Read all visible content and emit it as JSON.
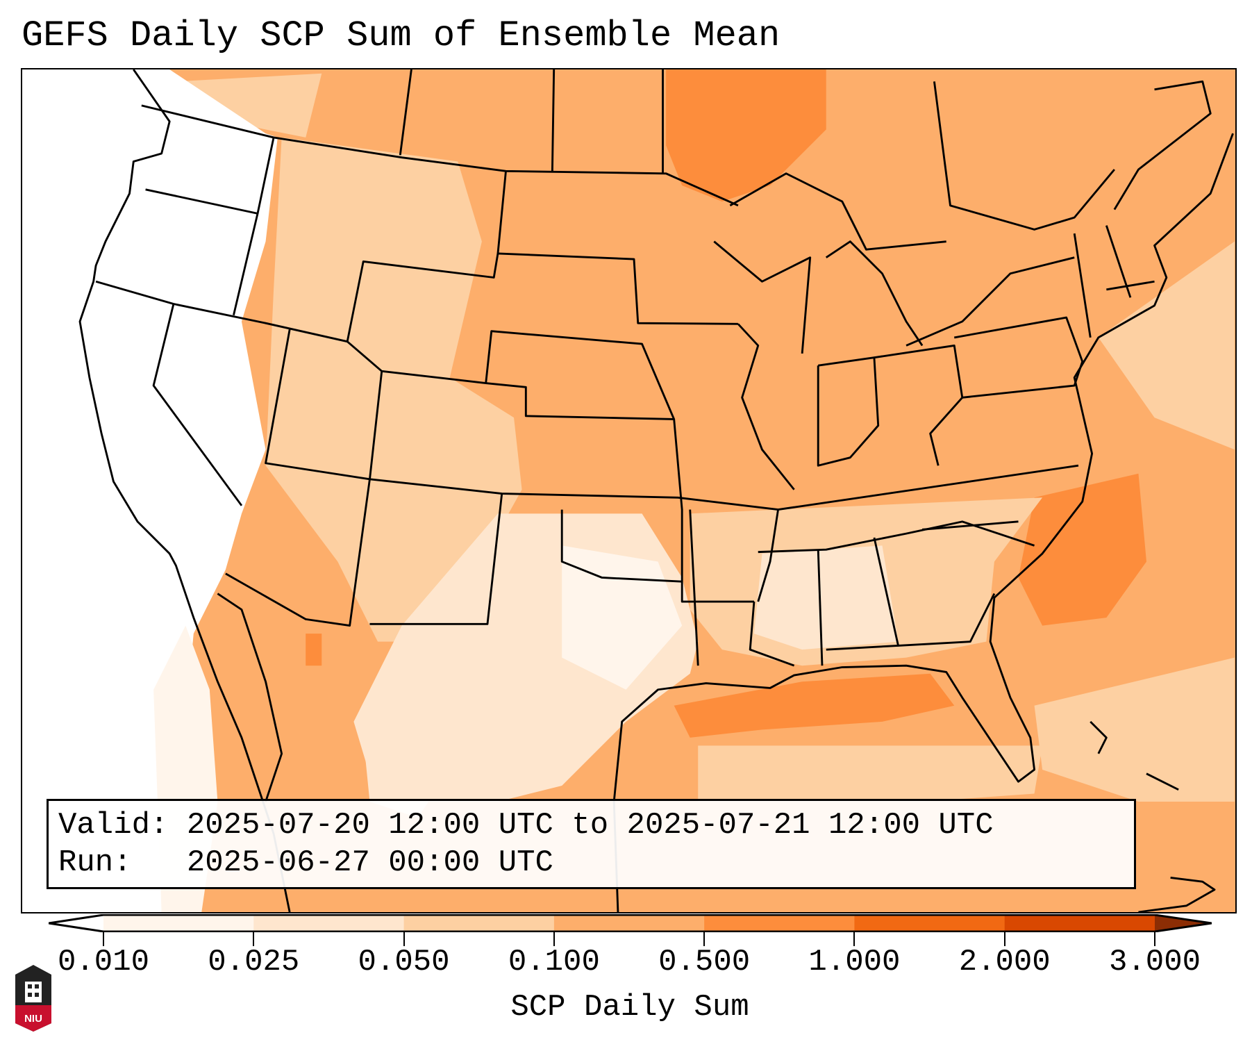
{
  "title": "GEFS Daily SCP Sum of Ensemble Mean",
  "info": {
    "valid": "Valid: 2025-07-20 12:00 UTC to 2025-07-21 12:00 UTC",
    "run": "Run:   2025-06-27 00:00 UTC"
  },
  "colorbar": {
    "label": "SCP Daily Sum",
    "ticks": [
      "0.010",
      "0.025",
      "0.050",
      "0.100",
      "0.500",
      "1.000",
      "2.000",
      "3.000"
    ],
    "colors": [
      "#fff5eb",
      "#fee6ce",
      "#fdd0a2",
      "#fdae6b",
      "#fd8d3c",
      "#f16913",
      "#d94801"
    ],
    "under_color": "#ffffff",
    "over_color": "#8c2d04"
  },
  "logo": {
    "text": "NIU"
  }
}
